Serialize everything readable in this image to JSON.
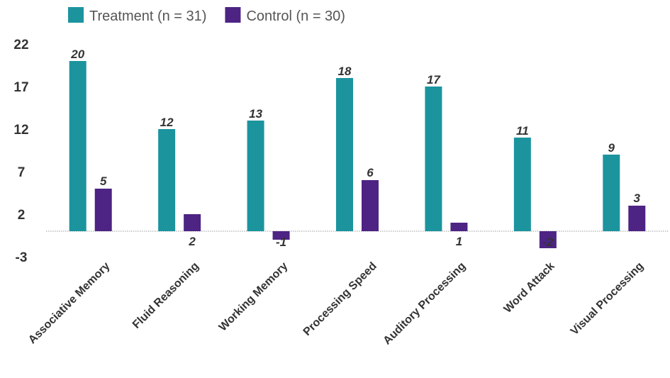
{
  "chart_data": {
    "type": "bar",
    "categories": [
      "Associative Memory",
      "Fluid Reasoning",
      "Working Memory",
      "Processing Speed",
      "Auditory Processing",
      "Word Attack",
      "Visual Processing"
    ],
    "series": [
      {
        "name": "Treatment (n = 31)",
        "values": [
          20,
          12,
          13,
          18,
          17,
          11,
          9
        ],
        "color": "#1b949e"
      },
      {
        "name": "Control (n = 30)",
        "values": [
          5,
          2,
          -1,
          6,
          1,
          -2,
          3
        ],
        "color": "#4d2384"
      }
    ],
    "data_labels": [
      [
        "20",
        "12",
        "13",
        "18",
        "17",
        "11",
        "9"
      ],
      [
        "5",
        "2",
        "-1",
        "6",
        "1",
        "-2",
        "3"
      ]
    ],
    "yticks": [
      22,
      17,
      12,
      7,
      2,
      -3
    ],
    "ylim": [
      -3,
      22
    ],
    "title": "",
    "xlabel": "",
    "ylabel": "",
    "grid": false,
    "legend_position": "top-left"
  }
}
